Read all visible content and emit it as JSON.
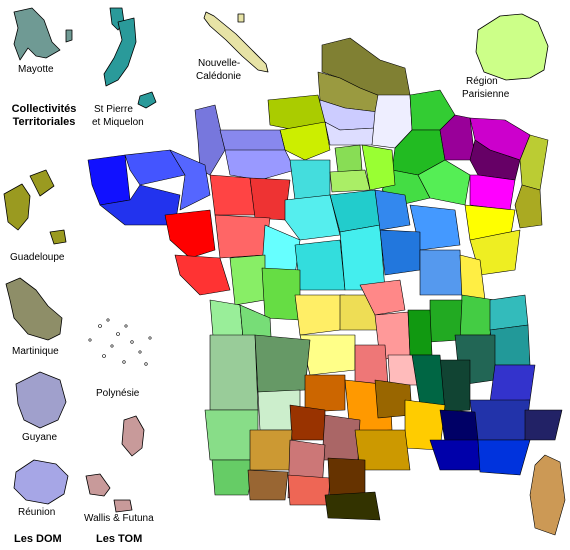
{
  "labels": {
    "mayotte": "Mayotte",
    "collectivites_line1": "Collectivités",
    "collectivites_line2": "Territoriales",
    "st_pierre_line1": "St Pierre",
    "st_pierre_line2": "et Miquelon",
    "nouvelle_caledonie_line1": "Nouvelle-",
    "nouvelle_caledonie_line2": "Calédonie",
    "region_parisienne_line1": "Région",
    "region_parisienne_line2": "Parisienne",
    "guadeloupe": "Guadeloupe",
    "martinique": "Martinique",
    "guyane": "Guyane",
    "reunion": "Réunion",
    "les_dom": "Les DOM",
    "polynesie": "Polynésie",
    "wallis_futuna": "Wallis & Futuna",
    "les_tom": "Les TOM"
  },
  "colors": {
    "mayotte": "#6f9a94",
    "st_pierre": "#2a9a9a",
    "nouvelle_caledonie": "#e7e3a6",
    "region_parisienne": "#ccff88",
    "guadeloupe": "#9a9a20",
    "martinique": "#8e8e68",
    "guyane": "#a0a0cc",
    "reunion": "#a6a6e6",
    "wallis": "#c89a9a",
    "polynesie": "#ffffff",
    "corse": "#cc9955"
  }
}
